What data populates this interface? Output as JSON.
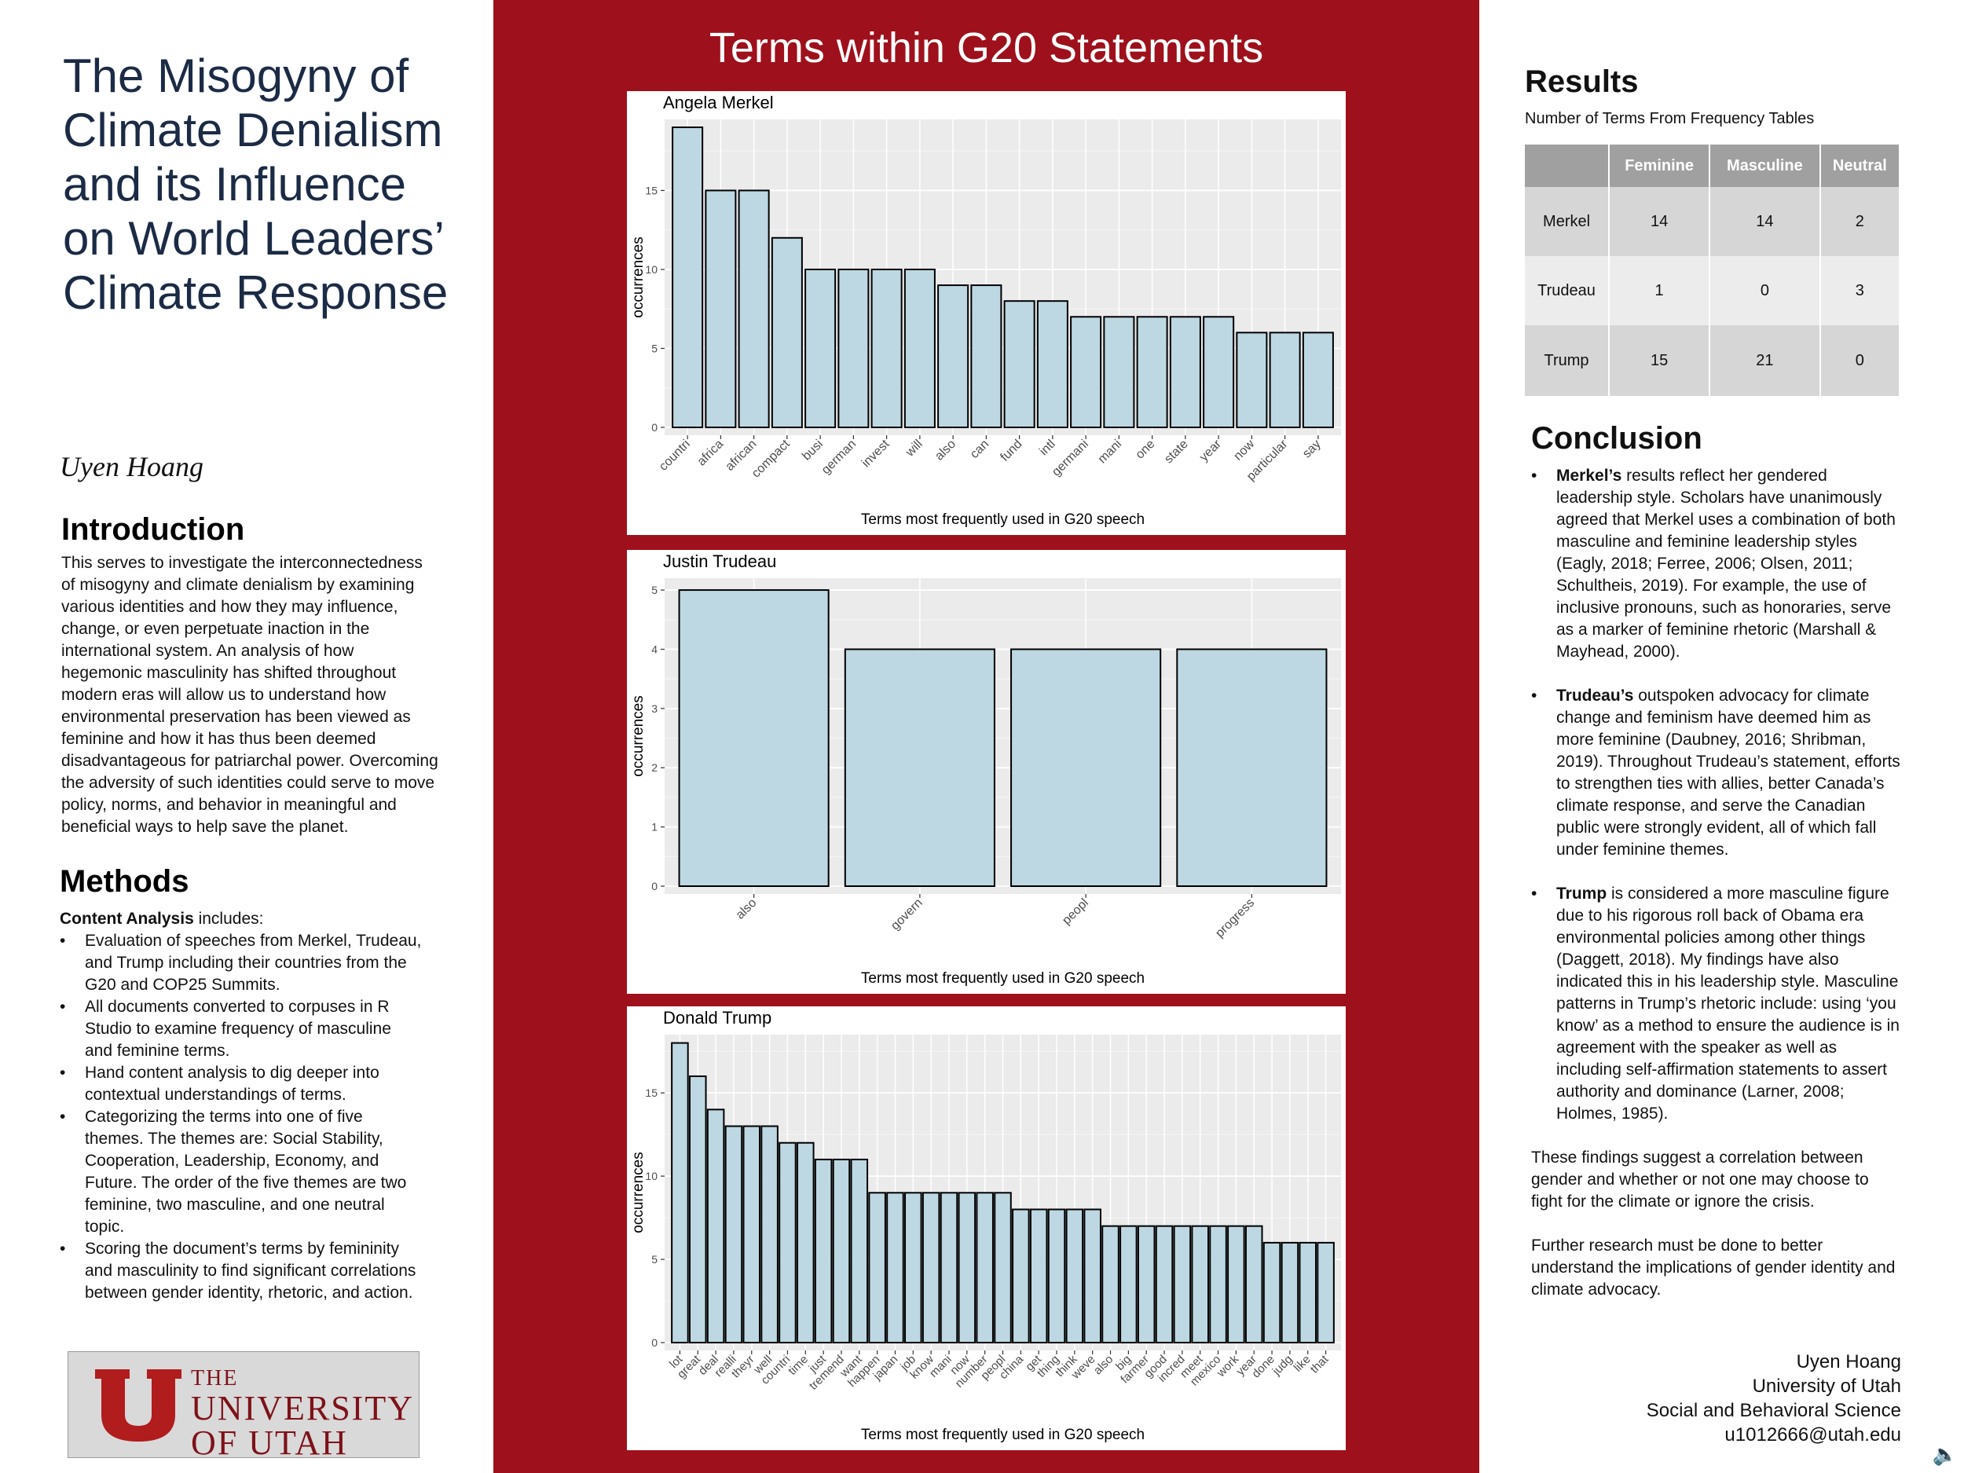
{
  "title": "The Misogyny of Climate Denialism and its Influence on World Leaders’ Climate Response",
  "author": "Uyen Hoang",
  "introduction": {
    "heading": "Introduction",
    "text": "This serves to investigate the interconnectedness of misogyny and climate denialism by examining various identities and how they may influence, change, or even perpetuate inaction in the international system. An analysis of how hegemonic masculinity has shifted throughout modern eras will allow us to understand how environmental preservation has been viewed as feminine and how it has thus been deemed disadvantageous for patriarchal power. Overcoming the adversity of such identities could serve to move policy, norms, and behavior in meaningful and beneficial ways to help save the planet."
  },
  "methods": {
    "heading": "Methods",
    "lead_bold": "Content Analysis",
    "lead_rest": " includes:",
    "items": [
      "Evaluation of speeches from Merkel, Trudeau, and Trump including their countries from the G20 and COP25 Summits.",
      "All documents converted to corpuses in R Studio to examine frequency of masculine and feminine terms.",
      "Hand content analysis to dig deeper into contextual understandings of terms.",
      "Categorizing the terms into one of five themes. The themes are: Social Stability, Cooperation, Leadership, Economy, and Future. The order of the five themes are two feminine, two masculine, and one neutral topic.",
      "Scoring the document’s terms by femininity and masculinity to find significant correlations between gender identity, rhetoric, and action."
    ]
  },
  "logo": {
    "the": "THE",
    "university": "UNIVERSITY",
    "of_utah": "OF UTAH",
    "icon": "block-u-logo"
  },
  "center_title": "Terms within G20 Statements",
  "chart_data": [
    {
      "type": "bar",
      "title": "Angela Merkel",
      "xlabel": "Terms most frequently used in G20 speech",
      "ylabel": "occurrences",
      "categories": [
        "countri",
        "africa",
        "african",
        "compact",
        "busi",
        "german",
        "invest",
        "will",
        "also",
        "can",
        "fund",
        "intl",
        "germani",
        "mani",
        "one",
        "state",
        "year",
        "now",
        "particular",
        "say"
      ],
      "values": [
        19,
        15,
        15,
        12,
        10,
        10,
        10,
        10,
        9,
        9,
        8,
        8,
        7,
        7,
        7,
        7,
        7,
        6,
        6,
        6
      ],
      "yticks": [
        0,
        5,
        10,
        15
      ],
      "ylim": [
        0,
        19.5
      ],
      "grid": true
    },
    {
      "type": "bar",
      "title": "Justin Trudeau",
      "xlabel": "Terms most frequently used in G20 speech",
      "ylabel": "occurrences",
      "categories": [
        "also",
        "govern",
        "peopl",
        "progress"
      ],
      "values": [
        5,
        4,
        4,
        4
      ],
      "yticks": [
        0,
        1,
        2,
        3,
        4,
        5
      ],
      "ylim": [
        0,
        5.2
      ],
      "grid": true
    },
    {
      "type": "bar",
      "title": "Donald Trump",
      "xlabel": "Terms most frequently used in G20 speech",
      "ylabel": "occurrences",
      "categories": [
        "lot",
        "great",
        "deal",
        "realli",
        "theyr",
        "well",
        "countri",
        "time",
        "just",
        "tremend",
        "want",
        "happen",
        "japan",
        "job",
        "know",
        "mani",
        "now",
        "number",
        "peopl",
        "china",
        "get",
        "thing",
        "think",
        "weve",
        "also",
        "big",
        "farmer",
        "good",
        "incred",
        "meet",
        "mexico",
        "work",
        "year",
        "done",
        "judg",
        "like",
        "that"
      ],
      "values": [
        18,
        16,
        14,
        13,
        13,
        13,
        12,
        12,
        11,
        11,
        11,
        9,
        9,
        9,
        9,
        9,
        9,
        9,
        9,
        8,
        8,
        8,
        8,
        8,
        7,
        7,
        7,
        7,
        7,
        7,
        7,
        7,
        7,
        6,
        6,
        6,
        6
      ],
      "yticks": [
        0,
        5,
        10,
        15
      ],
      "ylim": [
        0,
        18.5
      ],
      "grid": true
    }
  ],
  "results": {
    "heading": "Results",
    "subheading": "Number of Terms From Frequency Tables",
    "columns": [
      "",
      "Feminine",
      "Masculine",
      "Neutral"
    ],
    "rows": [
      [
        "Merkel",
        "14",
        "14",
        "2"
      ],
      [
        "Trudeau",
        "1",
        "0",
        "3"
      ],
      [
        "Trump",
        "15",
        "21",
        "0"
      ]
    ]
  },
  "conclusion": {
    "heading": "Conclusion",
    "bullets": [
      {
        "bold": "Merkel’s",
        "text": " results reflect her gendered leadership style. Scholars have unanimously agreed that Merkel uses a combination of both masculine and feminine leadership styles (Eagly, 2018; Ferree, 2006; Olsen, 2011; Schultheis, 2019). For example, the use of inclusive pronouns, such as honoraries, serve as a marker of feminine rhetoric (Marshall & Mayhead, 2000)."
      },
      {
        "bold": "Trudeau’s",
        "text": " outspoken advocacy for climate change and feminism have deemed him as more feminine (Daubney, 2016; Shribman, 2019). Throughout Trudeau’s statement, efforts to strengthen ties with allies, better Canada’s climate response, and serve the Canadian public were strongly evident, all of which fall under feminine themes."
      },
      {
        "bold": "Trump",
        "text": " is considered a more masculine figure due to his rigorous roll back of Obama era environmental policies among other things (Daggett, 2018). My findings have also indicated this in his leadership style. Masculine patterns in Trump’s rhetoric include: using ‘you know’ as a method to ensure the audience is in agreement with the speaker as well as including self-affirmation statements to assert authority and dominance (Larner, 2008; Holmes, 1985)."
      }
    ],
    "para1": "These findings suggest a correlation between gender and whether or not one may choose to fight for the climate or ignore the crisis.",
    "para2": "Further research must be done to better understand the implications of gender identity and climate advocacy."
  },
  "contact": {
    "name": "Uyen Hoang",
    "university": "University of Utah",
    "dept": "Social and Behavioral Science",
    "email": "u1012666@utah.edu"
  },
  "icons": {
    "speaker": "speaker-icon"
  }
}
